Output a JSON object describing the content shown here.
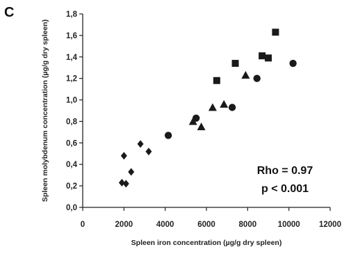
{
  "panel_label": "C",
  "chart_data": {
    "type": "scatter",
    "xlabel": "Spleen iron concentration (µg/g dry spleen)",
    "ylabel": "Spleen molybdenum concentration (µg/g dry spleen)",
    "xlim": [
      0,
      12000
    ],
    "ylim": [
      0,
      1.8
    ],
    "x_ticks": [
      "0",
      "2000",
      "4000",
      "6000",
      "8000",
      "10000",
      "12000"
    ],
    "y_ticks": [
      "0,0",
      "0,2",
      "0,4",
      "0,6",
      "0,8",
      "1,0",
      "1,2",
      "1,4",
      "1,6",
      "1,8"
    ],
    "grid": false,
    "legend": "none",
    "marker_color": "#1a1a1a",
    "annotations": [
      "Rho = 0.97",
      "p < 0.001"
    ],
    "series": [
      {
        "marker": "diamond",
        "points": [
          [
            1900,
            0.23
          ],
          [
            2000,
            0.48
          ],
          [
            2100,
            0.22
          ],
          [
            2350,
            0.33
          ],
          [
            2800,
            0.59
          ],
          [
            3200,
            0.52
          ]
        ]
      },
      {
        "marker": "circle",
        "points": [
          [
            4150,
            0.67
          ],
          [
            5500,
            0.83
          ],
          [
            7250,
            0.93
          ],
          [
            8450,
            1.2
          ],
          [
            10200,
            1.34
          ]
        ]
      },
      {
        "marker": "triangle",
        "points": [
          [
            5350,
            0.8
          ],
          [
            5750,
            0.75
          ],
          [
            6300,
            0.93
          ],
          [
            6850,
            0.96
          ],
          [
            7900,
            1.23
          ]
        ]
      },
      {
        "marker": "square",
        "points": [
          [
            6500,
            1.18
          ],
          [
            7400,
            1.34
          ],
          [
            8700,
            1.41
          ],
          [
            9000,
            1.39
          ],
          [
            9350,
            1.63
          ]
        ]
      }
    ]
  }
}
